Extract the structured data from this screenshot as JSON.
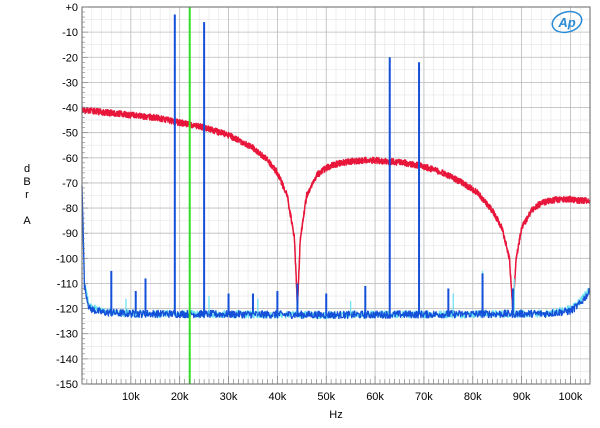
{
  "chart_data": {
    "type": "line",
    "title": "",
    "xlabel": "Hz",
    "ylabel_lines": [
      "d",
      "B",
      "r",
      "",
      "A"
    ],
    "xlim": [
      0,
      104000
    ],
    "ylim": [
      -150,
      0
    ],
    "grid": true,
    "y_ticks": [
      0,
      -10,
      -20,
      -30,
      -40,
      -50,
      -60,
      -70,
      -80,
      -90,
      -100,
      -110,
      -120,
      -130,
      -140,
      -150
    ],
    "y_tick_labels": [
      "+0",
      "-10",
      "-20",
      "-30",
      "-40",
      "-50",
      "-60",
      "-70",
      "-80",
      "-90",
      "-100",
      "-110",
      "-120",
      "-130",
      "-140",
      "-150"
    ],
    "x_ticks": [
      10000,
      20000,
      30000,
      40000,
      50000,
      60000,
      70000,
      80000,
      90000,
      100000
    ],
    "x_tick_labels": [
      "10k",
      "20k",
      "30k",
      "40k",
      "50k",
      "60k",
      "70k",
      "80k",
      "90k",
      "100k"
    ],
    "logo_text": "Ap",
    "marker": {
      "x": 22050,
      "color": "#33dd22"
    },
    "series": [
      {
        "color": "#e8163a",
        "type": "noise-curve",
        "x": [
          0,
          5000,
          10000,
          15000,
          20000,
          25000,
          30000,
          35000,
          38000,
          40000,
          42000,
          43500,
          44100,
          44700,
          46000,
          48000,
          50000,
          52000,
          55000,
          58000,
          60000,
          63000,
          66000,
          70000,
          74000,
          78000,
          81000,
          84000,
          86000,
          87500,
          88200,
          88900,
          90000,
          92000,
          94000,
          96000,
          98000,
          100000,
          102000,
          104000
        ],
        "y": [
          -41,
          -42,
          -43,
          -44,
          -46,
          -48,
          -51,
          -56,
          -61,
          -66,
          -75,
          -92,
          -120,
          -92,
          -75,
          -67,
          -64,
          -62.5,
          -61.5,
          -61,
          -61,
          -61.5,
          -62,
          -63.5,
          -66,
          -70,
          -74,
          -81,
          -88,
          -100,
          -120,
          -100,
          -88,
          -81,
          -78,
          -77,
          -76.5,
          -76.5,
          -77,
          -77
        ]
      },
      {
        "color": "#66e0f0",
        "type": "noise-floor",
        "x": [
          0,
          500,
          1500,
          4000,
          10000,
          50000,
          95000,
          100000,
          102000,
          104000
        ],
        "y": [
          -75,
          -110,
          -119,
          -121,
          -122,
          -122.5,
          -122,
          -120,
          -117,
          -112
        ]
      },
      {
        "color": "#1450d8",
        "type": "noise-floor",
        "x": [
          0,
          500,
          1500,
          4000,
          10000,
          50000,
          95000,
          100000,
          102000,
          104000
        ],
        "y": [
          -70,
          -111,
          -120,
          -121.5,
          -122,
          -122.5,
          -122,
          -121,
          -118,
          -113
        ]
      }
    ],
    "spikes": {
      "color": "#1450d8",
      "floor": -122,
      "x": [
        19000,
        25000,
        63000,
        69000,
        6000,
        13000,
        11000,
        30000,
        35000,
        40000,
        44100,
        50000,
        58000,
        75000,
        82000,
        88200
      ],
      "y": [
        -3,
        -6,
        -20,
        -22,
        -105,
        -108,
        -113,
        -114,
        -114,
        -113,
        -110,
        -114,
        -111,
        -112,
        -106,
        -112
      ]
    },
    "cyan_spikes": {
      "color": "#66e0f0",
      "floor": -122,
      "x": [
        9000,
        26000,
        36000,
        55000,
        76000,
        82000,
        88500
      ],
      "y": [
        -116,
        -115,
        -116,
        -117,
        -114,
        -105,
        -108
      ]
    }
  }
}
